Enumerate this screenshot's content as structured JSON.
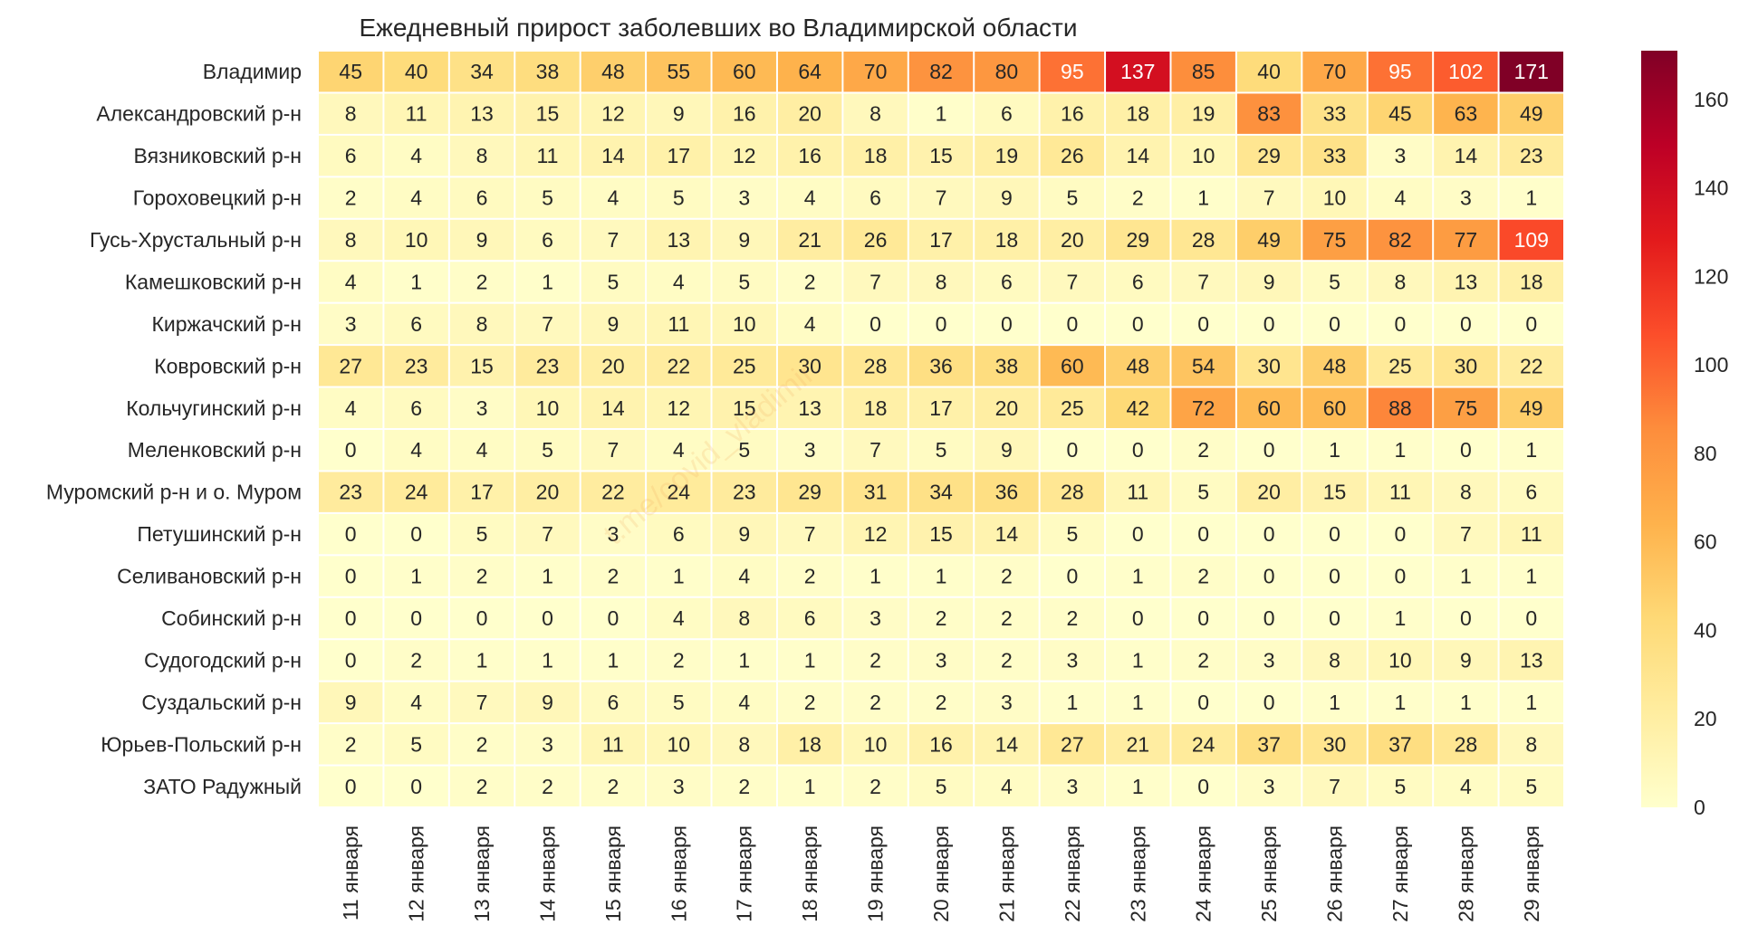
{
  "chart_data": {
    "type": "heatmap",
    "title": "Ежедневный прирост заболевших во Владимирской области",
    "watermark": "t.me/covid_vladimir",
    "rows": [
      "Владимир",
      "Александровский р-н",
      "Вязниковский р-н",
      "Гороховецкий р-н",
      "Гусь-Хрустальный р-н",
      "Камешковский р-н",
      "Киржачский р-н",
      "Ковровский р-н",
      "Кольчугинский р-н",
      "Меленковский р-н",
      "Муромский р-н и о. Муром",
      "Петушинский р-н",
      "Селивановский р-н",
      "Собинский р-н",
      "Судогодский р-н",
      "Суздальский р-н",
      "Юрьев-Польский р-н",
      "ЗАТО Радужный"
    ],
    "columns": [
      "11 января",
      "12 января",
      "13 января",
      "14 января",
      "15 января",
      "16 января",
      "17 января",
      "18 января",
      "19 января",
      "20 января",
      "21 января",
      "22 января",
      "23 января",
      "24 января",
      "25 января",
      "26 января",
      "27 января",
      "28 января",
      "29 января"
    ],
    "values": [
      [
        45,
        40,
        34,
        38,
        48,
        55,
        60,
        64,
        70,
        82,
        80,
        95,
        137,
        85,
        40,
        70,
        95,
        102,
        171
      ],
      [
        8,
        11,
        13,
        15,
        12,
        9,
        16,
        20,
        8,
        1,
        6,
        16,
        18,
        19,
        83,
        33,
        45,
        63,
        49
      ],
      [
        6,
        4,
        8,
        11,
        14,
        17,
        12,
        16,
        18,
        15,
        19,
        26,
        14,
        10,
        29,
        33,
        3,
        14,
        23
      ],
      [
        2,
        4,
        6,
        5,
        4,
        5,
        3,
        4,
        6,
        7,
        9,
        5,
        2,
        1,
        7,
        10,
        4,
        3,
        1
      ],
      [
        8,
        10,
        9,
        6,
        7,
        13,
        9,
        21,
        26,
        17,
        18,
        20,
        29,
        28,
        49,
        75,
        82,
        77,
        109
      ],
      [
        4,
        1,
        2,
        1,
        5,
        4,
        5,
        2,
        7,
        8,
        6,
        7,
        6,
        7,
        9,
        5,
        8,
        13,
        18
      ],
      [
        3,
        6,
        8,
        7,
        9,
        11,
        10,
        4,
        0,
        0,
        0,
        0,
        0,
        0,
        0,
        0,
        0,
        0,
        0
      ],
      [
        27,
        23,
        15,
        23,
        20,
        22,
        25,
        30,
        28,
        36,
        38,
        60,
        48,
        54,
        30,
        48,
        25,
        30,
        22
      ],
      [
        4,
        6,
        3,
        10,
        14,
        12,
        15,
        13,
        18,
        17,
        20,
        25,
        42,
        72,
        60,
        60,
        88,
        75,
        49
      ],
      [
        0,
        4,
        4,
        5,
        7,
        4,
        5,
        3,
        7,
        5,
        9,
        0,
        0,
        2,
        0,
        1,
        1,
        0,
        1
      ],
      [
        23,
        24,
        17,
        20,
        22,
        24,
        23,
        29,
        31,
        34,
        36,
        28,
        11,
        5,
        20,
        15,
        11,
        8,
        6
      ],
      [
        0,
        0,
        5,
        7,
        3,
        6,
        9,
        7,
        12,
        15,
        14,
        5,
        0,
        0,
        0,
        0,
        0,
        7,
        11
      ],
      [
        0,
        1,
        2,
        1,
        2,
        1,
        4,
        2,
        1,
        1,
        2,
        0,
        1,
        2,
        0,
        0,
        0,
        1,
        1
      ],
      [
        0,
        0,
        0,
        0,
        0,
        4,
        8,
        6,
        3,
        2,
        2,
        2,
        0,
        0,
        0,
        0,
        1,
        0,
        0
      ],
      [
        0,
        2,
        1,
        1,
        1,
        2,
        1,
        1,
        2,
        3,
        2,
        3,
        1,
        2,
        3,
        8,
        10,
        9,
        13
      ],
      [
        9,
        4,
        7,
        9,
        6,
        5,
        4,
        2,
        2,
        2,
        3,
        1,
        1,
        0,
        0,
        1,
        1,
        1,
        1
      ],
      [
        2,
        5,
        2,
        3,
        11,
        10,
        8,
        18,
        10,
        16,
        14,
        27,
        21,
        24,
        37,
        30,
        37,
        28,
        8
      ],
      [
        0,
        0,
        2,
        2,
        2,
        3,
        2,
        1,
        2,
        5,
        4,
        3,
        1,
        0,
        3,
        7,
        5,
        4,
        5
      ]
    ],
    "vmin": 0,
    "vmax": 171,
    "colorbar_ticks": [
      0,
      20,
      40,
      60,
      80,
      100,
      120,
      140,
      160
    ],
    "colormap": "YlOrRd",
    "colormap_stops": [
      "#ffffcc",
      "#ffeda0",
      "#fed976",
      "#feb24c",
      "#fd8d3c",
      "#fc4e2a",
      "#e31a1c",
      "#bd0026",
      "#800026"
    ],
    "grid_color": "#ffffff",
    "annotated": true
  }
}
